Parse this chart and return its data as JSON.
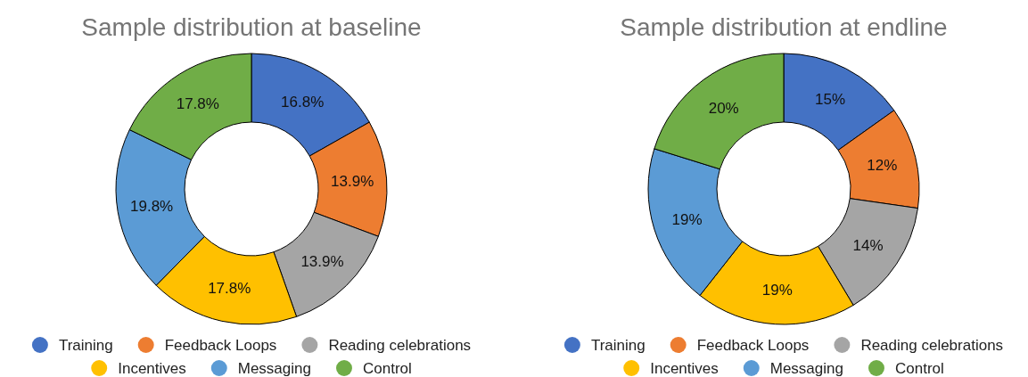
{
  "chart_data": [
    {
      "type": "donut",
      "title": "Sample distribution at baseline",
      "categories": [
        "Training",
        "Feedback Loops",
        "Reading celebrations",
        "Incentives",
        "Messaging",
        "Control"
      ],
      "values": [
        16.8,
        13.9,
        13.9,
        17.8,
        19.8,
        17.8
      ],
      "value_labels": [
        "16.8%",
        "13.9%",
        "13.9%",
        "17.8%",
        "19.8%",
        "17.8%"
      ],
      "colors": [
        "#4472c4",
        "#ed7d31",
        "#a5a5a5",
        "#ffc000",
        "#5b9bd5",
        "#70ad47"
      ],
      "legend": "bottom"
    },
    {
      "type": "donut",
      "title": "Sample distribution at endline",
      "categories": [
        "Training",
        "Feedback Loops",
        "Reading celebrations",
        "Incentives",
        "Messaging",
        "Control"
      ],
      "values": [
        15,
        12,
        14,
        19,
        19,
        20
      ],
      "value_labels": [
        "15%",
        "12%",
        "14%",
        "19%",
        "19%",
        "20%"
      ],
      "colors": [
        "#4472c4",
        "#ed7d31",
        "#a5a5a5",
        "#ffc000",
        "#5b9bd5",
        "#70ad47"
      ],
      "legend": "bottom"
    }
  ]
}
